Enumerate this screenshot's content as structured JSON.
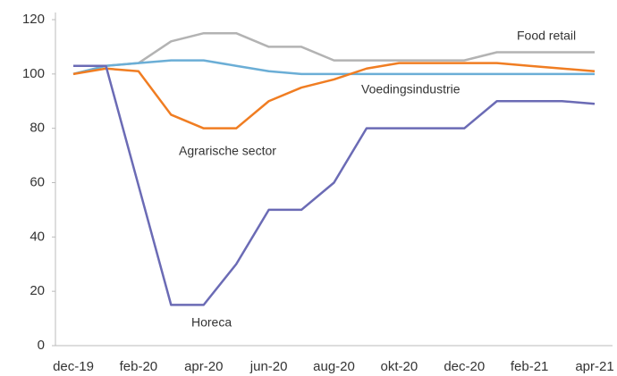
{
  "chart_data": {
    "type": "line",
    "categories": [
      "dec-19",
      null,
      "feb-20",
      null,
      "apr-20",
      null,
      "jun-20",
      null,
      "aug-20",
      null,
      "okt-20",
      null,
      "dec-20",
      null,
      "feb-21",
      null,
      "apr-21"
    ],
    "series": [
      {
        "name": "Food retail",
        "color": "#b3b3b3",
        "values": [
          100,
          103,
          104,
          112,
          115,
          115,
          110,
          110,
          105,
          105,
          105,
          105,
          105,
          108,
          108,
          108,
          108
        ]
      },
      {
        "name": "Voedingsindustrie",
        "color": "#6baed6",
        "values": [
          100,
          103,
          104,
          105,
          105,
          103,
          101,
          100,
          100,
          100,
          100,
          100,
          100,
          100,
          100,
          100,
          100
        ]
      },
      {
        "name": "Agrarische sector",
        "color": "#f07d22",
        "values": [
          100,
          102,
          101,
          85,
          80,
          80,
          90,
          95,
          98,
          102,
          104,
          104,
          104,
          104,
          103,
          102,
          101
        ]
      },
      {
        "name": "Horeca",
        "color": "#6b6bb5",
        "values": [
          103,
          103,
          59,
          15,
          15,
          30,
          50,
          50,
          60,
          80,
          80,
          80,
          80,
          90,
          90,
          90,
          89
        ]
      }
    ],
    "ylim": [
      0,
      120
    ],
    "yticks": [
      0,
      20,
      40,
      60,
      80,
      100,
      120
    ],
    "grid": false
  }
}
